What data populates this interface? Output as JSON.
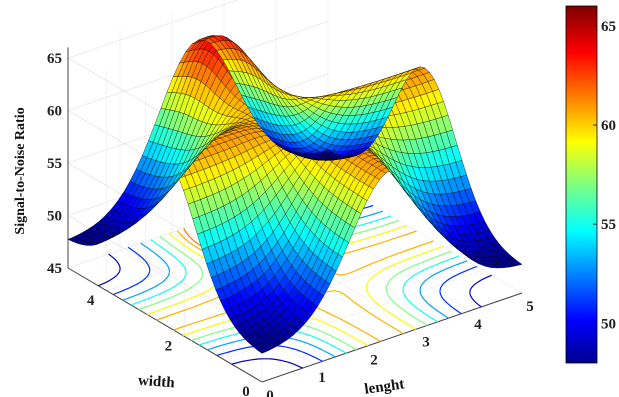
{
  "chart_data": {
    "type": "surface",
    "title": "",
    "xlabel": "lenght",
    "ylabel": "width",
    "zlabel": "Signal-to-Noise Ratio",
    "xlim": [
      0,
      5
    ],
    "ylim": [
      0,
      5
    ],
    "zlim": [
      45,
      65
    ],
    "x_ticks": [
      "0",
      "1",
      "2",
      "3",
      "4",
      "5"
    ],
    "y_ticks": [
      "0",
      "2",
      "4"
    ],
    "z_ticks": [
      "45",
      "50",
      "55",
      "60",
      "65"
    ],
    "colorbar": {
      "range": [
        48,
        66
      ],
      "ticks": [
        "50",
        "55",
        "60",
        "65"
      ],
      "colormap": "jet"
    },
    "grid": true,
    "contour_projection": true,
    "surface": {
      "description_points": [
        {
          "x": 0,
          "y": 0,
          "z": 48
        },
        {
          "x": 2.5,
          "y": 2.5,
          "z": 61
        },
        {
          "x": 2.5,
          "y": 4.5,
          "z": 64
        },
        {
          "x": 5,
          "y": 0,
          "z": 48
        },
        {
          "x": 2.5,
          "y": 0.5,
          "z": 47
        },
        {
          "x": 0.8,
          "y": 2.5,
          "z": 61
        },
        {
          "x": 4.2,
          "y": 2.5,
          "z": 61
        }
      ]
    }
  }
}
